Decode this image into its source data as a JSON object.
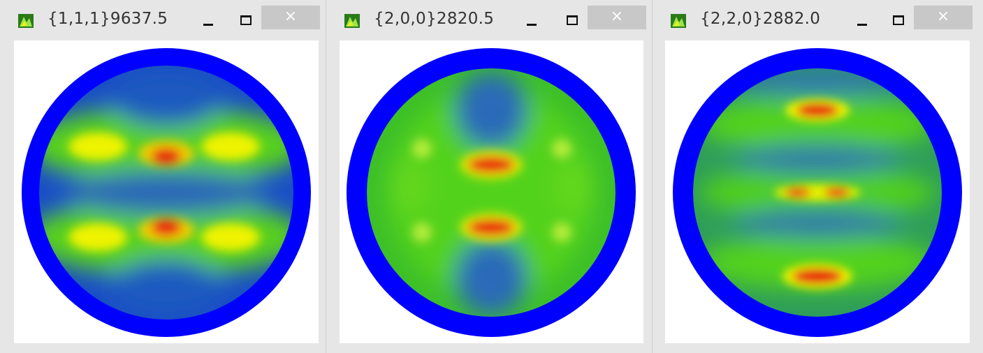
{
  "windows": [
    {
      "title": "{1,1,1}9637.5",
      "close_label": "×"
    },
    {
      "title": "{2,0,0}2820.5",
      "close_label": "×"
    },
    {
      "title": "{2,2,0}2882.0",
      "close_label": "×"
    }
  ],
  "colors": {
    "outer_ring": "#0000ff",
    "low": "#1e56c8",
    "mid": "#3bbf2a",
    "high_green": "#7ee81a",
    "yellow": "#f3f200",
    "red": "#e7150a"
  }
}
